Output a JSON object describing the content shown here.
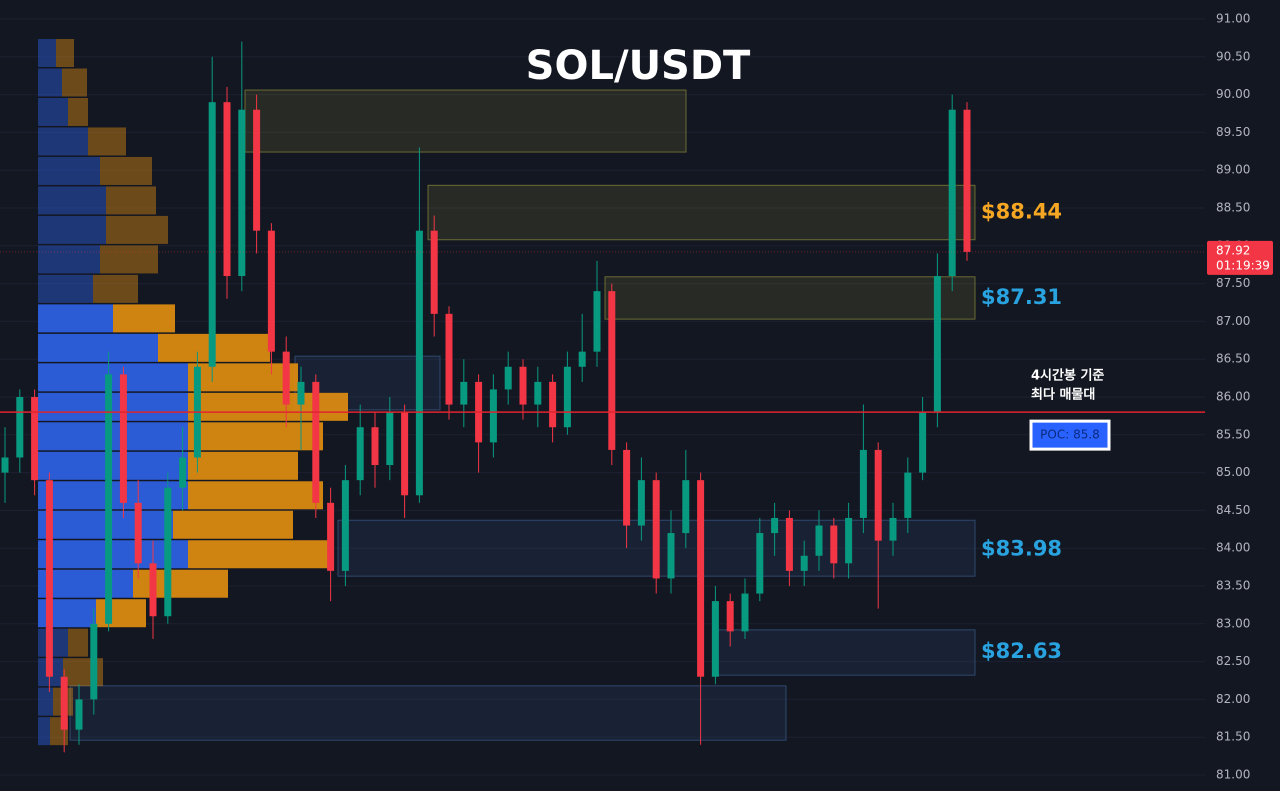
{
  "chart_data": {
    "type": "candlestick",
    "title": "SOL/USDT",
    "ylim": [
      81.0,
      91.0
    ],
    "yticks": [
      {
        "value": 91.0,
        "label": "91.00"
      },
      {
        "value": 90.5,
        "label": "90.50"
      },
      {
        "value": 90.0,
        "label": "90.00"
      },
      {
        "value": 89.5,
        "label": "89.50"
      },
      {
        "value": 89.0,
        "label": "89.00"
      },
      {
        "value": 88.5,
        "label": "88.50"
      },
      {
        "value": 88.0,
        "label": "88.00"
      },
      {
        "value": 87.5,
        "label": "87.50"
      },
      {
        "value": 87.0,
        "label": "87.00"
      },
      {
        "value": 86.5,
        "label": "86.50"
      },
      {
        "value": 86.0,
        "label": "86.00"
      },
      {
        "value": 85.5,
        "label": "85.50"
      },
      {
        "value": 85.0,
        "label": "85.00"
      },
      {
        "value": 84.5,
        "label": "84.50"
      },
      {
        "value": 84.0,
        "label": "84.00"
      },
      {
        "value": 83.5,
        "label": "83.50"
      },
      {
        "value": 83.0,
        "label": "83.00"
      },
      {
        "value": 82.5,
        "label": "82.50"
      },
      {
        "value": 82.0,
        "label": "82.00"
      },
      {
        "value": 81.5,
        "label": "81.50"
      },
      {
        "value": 81.0,
        "label": "81.00"
      }
    ],
    "grid": true,
    "up_color": "#089981",
    "down_color": "#f23645",
    "open": [
      85.0,
      85.2,
      86.0,
      84.9,
      82.3,
      81.6,
      82.0,
      83.0,
      86.3,
      84.6,
      83.8,
      83.1,
      84.8,
      85.2,
      86.4,
      89.9,
      87.6,
      89.8,
      88.2,
      86.6,
      85.9,
      86.2,
      84.6,
      83.7,
      84.9,
      85.6,
      85.1,
      85.8,
      84.7,
      88.2,
      87.1,
      85.9,
      86.2,
      85.4,
      86.1,
      86.4,
      85.9,
      86.2,
      85.6,
      86.4,
      86.6,
      87.4,
      85.3,
      84.3,
      84.9,
      83.6,
      84.2,
      84.9,
      82.3,
      83.3,
      82.9,
      83.4,
      84.2,
      84.4,
      83.7,
      83.9,
      84.3,
      83.8,
      84.4,
      85.3,
      84.1,
      84.4,
      85.0,
      85.8,
      87.6,
      89.8
    ],
    "high": [
      85.6,
      86.1,
      86.1,
      85.0,
      82.4,
      82.2,
      83.2,
      86.6,
      86.4,
      84.9,
      84.1,
      85.0,
      85.6,
      86.6,
      90.5,
      90.1,
      90.7,
      90.0,
      88.3,
      86.8,
      86.4,
      86.3,
      84.8,
      85.1,
      85.9,
      85.8,
      86.0,
      85.9,
      89.3,
      88.4,
      87.2,
      86.5,
      86.3,
      86.3,
      86.6,
      86.5,
      86.4,
      86.3,
      86.6,
      87.1,
      87.8,
      87.5,
      85.4,
      85.2,
      85.0,
      84.5,
      85.3,
      85.0,
      83.5,
      83.4,
      83.6,
      84.4,
      84.6,
      84.5,
      84.1,
      84.5,
      84.4,
      84.6,
      85.9,
      85.4,
      84.6,
      85.2,
      86.0,
      87.9,
      90.0,
      89.9
    ],
    "low": [
      84.6,
      85.0,
      84.7,
      82.1,
      81.3,
      81.4,
      81.8,
      82.9,
      84.4,
      83.6,
      82.8,
      83.0,
      84.5,
      85.0,
      86.2,
      87.3,
      87.4,
      87.9,
      86.3,
      85.6,
      85.3,
      84.4,
      83.3,
      83.5,
      84.7,
      84.8,
      84.9,
      84.4,
      84.6,
      86.8,
      85.7,
      85.6,
      85.0,
      85.2,
      85.9,
      85.7,
      85.6,
      85.4,
      85.5,
      86.2,
      86.4,
      85.1,
      84.0,
      84.1,
      83.4,
      83.4,
      84.0,
      81.4,
      82.2,
      82.7,
      82.8,
      83.3,
      83.9,
      83.5,
      83.5,
      83.7,
      83.6,
      83.6,
      84.2,
      83.2,
      83.9,
      84.2,
      84.9,
      85.6,
      87.4,
      87.8
    ],
    "close": [
      85.2,
      86.0,
      84.9,
      82.3,
      81.6,
      82.0,
      83.0,
      86.3,
      84.6,
      83.8,
      83.1,
      84.8,
      85.2,
      86.4,
      89.9,
      87.6,
      89.8,
      88.2,
      86.6,
      85.9,
      86.2,
      84.6,
      83.7,
      84.9,
      85.6,
      85.1,
      85.8,
      84.7,
      88.2,
      87.1,
      85.9,
      86.2,
      85.4,
      86.1,
      86.4,
      85.9,
      86.2,
      85.6,
      86.4,
      86.6,
      87.4,
      85.3,
      84.3,
      84.9,
      83.6,
      84.2,
      84.9,
      82.3,
      83.3,
      82.9,
      83.4,
      84.2,
      84.4,
      83.7,
      83.9,
      84.3,
      83.8,
      84.4,
      85.3,
      84.1,
      84.4,
      85.0,
      85.8,
      87.6,
      89.8,
      87.92
    ],
    "profile": {
      "levels": [
        90.55,
        90.16,
        89.77,
        89.38,
        88.99,
        88.6,
        88.21,
        87.82,
        87.43,
        87.04,
        86.65,
        86.26,
        85.87,
        85.48,
        85.09,
        84.7,
        84.31,
        83.92,
        83.53,
        83.14,
        82.75,
        82.36,
        81.97,
        81.58
      ],
      "buy": [
        18,
        24,
        30,
        50,
        62,
        68,
        68,
        62,
        55,
        75,
        120,
        150,
        150,
        150,
        150,
        150,
        135,
        150,
        95,
        58,
        30,
        25,
        15,
        12
      ],
      "sell": [
        18,
        25,
        20,
        38,
        52,
        50,
        62,
        58,
        45,
        62,
        112,
        110,
        160,
        135,
        110,
        135,
        120,
        140,
        95,
        50,
        20,
        40,
        20,
        18
      ],
      "buy_color": "#2d5fe0",
      "sell_color": "#d98a12",
      "value_area": [
        82.9,
        87.2
      ]
    },
    "zones": [
      {
        "low": 89.24,
        "high": 90.06,
        "color": "#8a8a3a"
      },
      {
        "low": 88.08,
        "high": 88.8,
        "color": "#8a8a3a",
        "value": 88.44,
        "label": "$88.44",
        "label_color": "#f5a623"
      },
      {
        "low": 87.03,
        "high": 87.59,
        "color": "#8a8a3a",
        "value": 87.31,
        "label": "$87.31",
        "label_color": "#29a3e0"
      },
      {
        "low": 85.83,
        "high": 86.54,
        "color": "#3a5a8a"
      },
      {
        "low": 83.63,
        "high": 84.37,
        "color": "#3a5a8a",
        "value": 83.98,
        "label": "$83.98",
        "label_color": "#29a3e0"
      },
      {
        "low": 82.32,
        "high": 82.92,
        "color": "#3a5a8a",
        "value": 82.63,
        "label": "$82.63",
        "label_color": "#29a3e0"
      },
      {
        "low": 81.46,
        "high": 82.18,
        "color": "#3a5a8a"
      }
    ],
    "poc": 85.8,
    "poc_label": "POC: 85.8",
    "annotation": [
      "4시간봉 기준",
      "최다 매물대"
    ],
    "last_price": 87.92,
    "countdown": "01:19:39"
  }
}
